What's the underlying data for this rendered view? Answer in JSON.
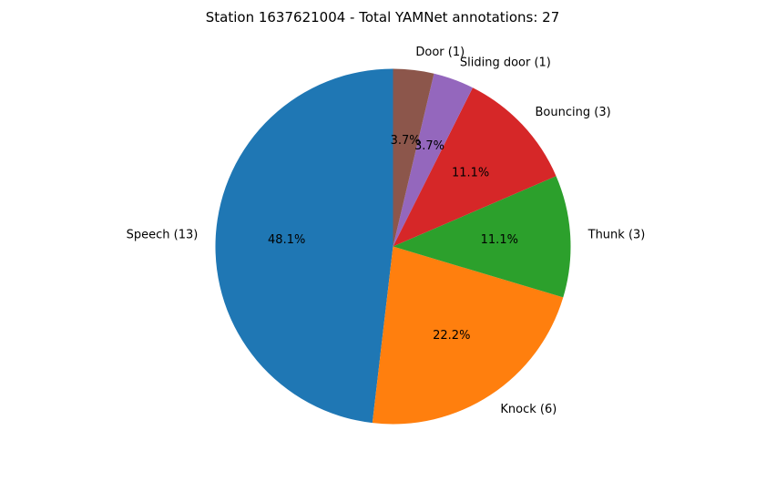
{
  "chart_data": {
    "type": "pie",
    "title": "Station 1637621004 - Total YAMNet annotations: 27",
    "start_angle_deg": 90,
    "direction": "counterclockwise",
    "slices": [
      {
        "label": "Speech (13)",
        "value": 13,
        "pct_label": "48.1%",
        "color": "#1f77b4"
      },
      {
        "label": "Knock (6)",
        "value": 6,
        "pct_label": "22.2%",
        "color": "#ff7f0e"
      },
      {
        "label": "Thunk (3)",
        "value": 3,
        "pct_label": "11.1%",
        "color": "#2ca02c"
      },
      {
        "label": "Bouncing (3)",
        "value": 3,
        "pct_label": "11.1%",
        "color": "#d62728"
      },
      {
        "label": "Sliding door (1)",
        "value": 1,
        "pct_label": "3.7%",
        "color": "#9467bd"
      },
      {
        "label": "Door (1)",
        "value": 1,
        "pct_label": "3.7%",
        "color": "#8c564b"
      }
    ]
  }
}
